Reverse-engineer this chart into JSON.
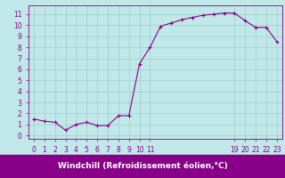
{
  "x": [
    0,
    1,
    2,
    3,
    4,
    5,
    6,
    7,
    8,
    9,
    10,
    11,
    12,
    13,
    14,
    15,
    16,
    17,
    18,
    19,
    20,
    21,
    22,
    23
  ],
  "y": [
    1.5,
    1.3,
    1.2,
    0.5,
    1.0,
    1.2,
    0.9,
    0.9,
    1.8,
    1.8,
    6.5,
    8.0,
    9.9,
    10.2,
    10.5,
    10.7,
    10.9,
    11.0,
    11.1,
    11.1,
    10.4,
    9.8,
    9.8,
    8.5
  ],
  "line_color": "#880088",
  "marker": "+",
  "markersize": 3,
  "linewidth": 0.8,
  "bg_color": "#c0e8e8",
  "grid_color": "#a0cccc",
  "axis_bg": "#c0e8e8",
  "xlabel": "Windchill (Refroidissement éolien,°C)",
  "xlabel_fontsize": 6.5,
  "yticks": [
    0,
    1,
    2,
    3,
    4,
    5,
    6,
    7,
    8,
    9,
    10,
    11
  ],
  "xtick_labels_shown": [
    "0",
    "1",
    "2",
    "3",
    "4",
    "5",
    "6",
    "7",
    "8",
    "9",
    "10",
    "11",
    "19",
    "20",
    "21",
    "22",
    "23"
  ],
  "xtick_positions_shown": [
    0,
    1,
    2,
    3,
    4,
    5,
    6,
    7,
    8,
    9,
    10,
    11,
    19,
    20,
    21,
    22,
    23
  ],
  "ylim": [
    -0.3,
    11.8
  ],
  "xlim": [
    -0.5,
    23.5
  ],
  "tick_color": "#880088",
  "tick_fontsize": 5.5,
  "spine_color": "#880088",
  "label_bg_color": "#880088",
  "label_text_color": "#ffffff"
}
